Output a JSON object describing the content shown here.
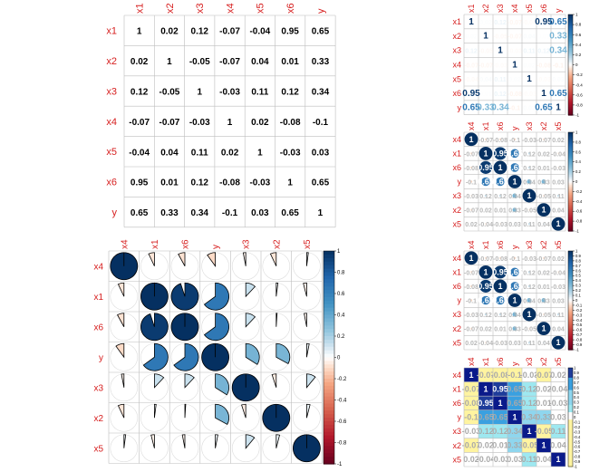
{
  "chart_data": [
    {
      "type": "heatmap",
      "style": "number",
      "variables": [
        "x1",
        "x2",
        "x3",
        "x4",
        "x5",
        "x6",
        "y"
      ],
      "cells": [
        [
          "1",
          "0.02",
          "0.12",
          "-0.07",
          "-0.04",
          "0.95",
          "0.65"
        ],
        [
          "0.02",
          "1",
          "-0.05",
          "-0.07",
          "0.04",
          "0.01",
          "0.33"
        ],
        [
          "0.12",
          "-0.05",
          "1",
          "-0.03",
          "0.11",
          "0.12",
          "0.34"
        ],
        [
          "-0.07",
          "-0.07",
          "-0.03",
          "1",
          "0.02",
          "-0.08",
          "-0.1"
        ],
        [
          "-0.04",
          "0.04",
          "0.11",
          "0.02",
          "1",
          "-0.03",
          "0.03"
        ],
        [
          "0.95",
          "0.01",
          "0.12",
          "-0.08",
          "-0.03",
          "1",
          "0.65"
        ],
        [
          "0.65",
          "0.33",
          "0.34",
          "-0.1",
          "0.03",
          "0.65",
          "1"
        ]
      ],
      "color_legend": false
    },
    {
      "type": "heatmap",
      "style": "pie",
      "variables": [
        "x4",
        "x1",
        "x6",
        "y",
        "x3",
        "x2",
        "x5"
      ],
      "values": [
        [
          1,
          -0.07,
          -0.08,
          -0.1,
          -0.03,
          -0.07,
          0.02
        ],
        [
          -0.07,
          1,
          0.95,
          0.65,
          0.12,
          0.02,
          -0.04
        ],
        [
          -0.08,
          0.95,
          1,
          0.65,
          0.12,
          0.01,
          -0.03
        ],
        [
          -0.1,
          0.65,
          0.65,
          1,
          0.34,
          0.33,
          0.03
        ],
        [
          -0.03,
          0.12,
          0.12,
          0.34,
          1,
          -0.05,
          0.11
        ],
        [
          -0.07,
          0.02,
          0.01,
          0.33,
          -0.05,
          1,
          0.04
        ],
        [
          0.02,
          -0.04,
          -0.03,
          0.03,
          0.11,
          0.04,
          1
        ]
      ],
      "colorbar_ticks": [
        "1",
        "0.8",
        "0.6",
        "0.4",
        "0.2",
        "0",
        "-0.2",
        "-0.4",
        "-0.6",
        "-0.8",
        "-1"
      ],
      "range": [
        -1,
        1
      ]
    },
    {
      "type": "heatmap",
      "style": "number",
      "variables": [
        "x1",
        "x2",
        "x3",
        "x4",
        "x5",
        "x6",
        "y"
      ],
      "visible_labels": [
        [
          "1",
          "",
          "",
          "",
          "",
          "0.95",
          "0.65"
        ],
        [
          "",
          "1",
          "",
          "",
          "",
          "",
          "0.33"
        ],
        [
          "",
          "",
          "1",
          "",
          "",
          "",
          "0.34"
        ],
        [
          "",
          "",
          "",
          "1",
          "",
          "",
          ""
        ],
        [
          "",
          "",
          "",
          "",
          "1",
          "",
          ""
        ],
        [
          "0.95",
          "",
          "",
          "",
          "",
          "1",
          "0.65"
        ],
        [
          "0.65",
          "0.33",
          "0.34",
          "",
          "",
          "0.65",
          "1"
        ]
      ],
      "colorbar_ticks": [
        "1",
        "0.8",
        "0.6",
        "0.4",
        "0.2",
        "0",
        "-0.2",
        "-0.4",
        "-0.6",
        "-0.8",
        "-1"
      ]
    },
    {
      "type": "heatmap",
      "style": "circle-with-numbers",
      "variables": [
        "x4",
        "x1",
        "x6",
        "y",
        "x3",
        "x2",
        "x5"
      ],
      "colorbar_ticks": [
        "1",
        "0.8",
        "0.6",
        "0.4",
        "0.2",
        "0",
        "-0.2",
        "-0.4",
        "-0.6",
        "-0.8",
        "-1"
      ]
    },
    {
      "type": "heatmap",
      "style": "circle-with-numbers",
      "variables": [
        "x4",
        "x1",
        "x6",
        "y",
        "x3",
        "x2",
        "x5"
      ],
      "colorbar_ticks": [
        "1",
        "0.9",
        "0.8",
        "0.7",
        "0.6",
        "0.5",
        "0.4",
        "0.3",
        "0.2",
        "0.1",
        "0",
        "-0.1",
        "-0.2",
        "-0.3",
        "-0.4",
        "-0.5",
        "-0.6",
        "-0.7",
        "-0.8",
        "-0.9",
        "-1"
      ]
    },
    {
      "type": "heatmap",
      "style": "color-with-numbers",
      "variables": [
        "x4",
        "x1",
        "x6",
        "y",
        "x3",
        "x2",
        "x5"
      ],
      "colorbar_ticks": [
        "1",
        "0.9",
        "0.8",
        "0.7",
        "0.6",
        "0.5",
        "0.4",
        "0.3",
        "0.2",
        "0.1",
        "0",
        "-0.1",
        "-0.2",
        "-0.3",
        "-0.4",
        "-0.5",
        "-0.6",
        "-0.7",
        "-0.8",
        "-0.9",
        "-1"
      ]
    }
  ]
}
